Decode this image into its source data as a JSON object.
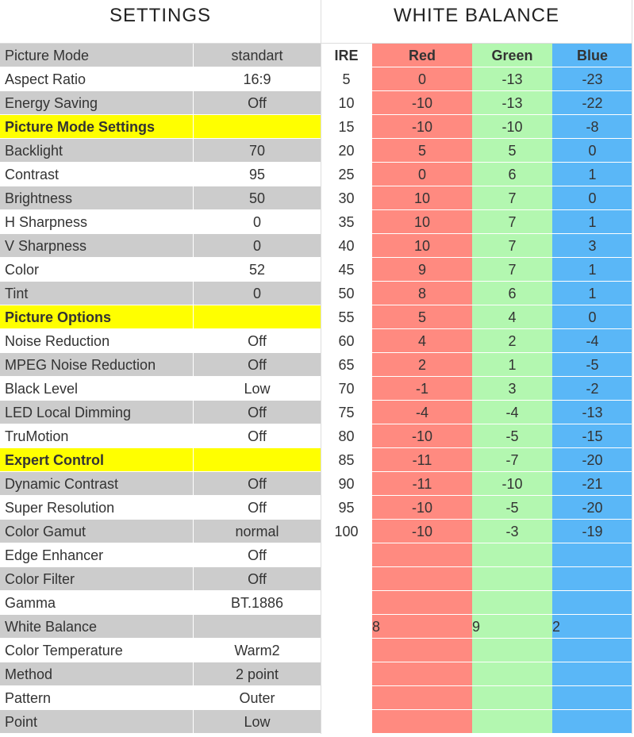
{
  "header": {
    "settings": "SETTINGS",
    "white_balance": "WHITE BALANCE"
  },
  "settings": {
    "rows": [
      [
        "Picture Mode",
        "standart"
      ],
      [
        "Aspect Ratio",
        "16:9"
      ],
      [
        "Energy Saving",
        "Off"
      ],
      [
        "Picture Mode Settings"
      ],
      [
        "Backlight",
        "70"
      ],
      [
        "Contrast",
        "95"
      ],
      [
        "Brightness",
        "50"
      ],
      [
        "H Sharpness",
        "0"
      ],
      [
        "V Sharpness",
        "0"
      ],
      [
        "Color",
        "52"
      ],
      [
        "Tint",
        "0"
      ],
      [
        "Picture Options"
      ],
      [
        "Noise Reduction",
        "Off"
      ],
      [
        "MPEG Noise Reduction",
        "Off"
      ],
      [
        "Black Level",
        "Low"
      ],
      [
        "LED Local Dimming",
        "Off"
      ],
      [
        "TruMotion",
        "Off"
      ],
      [
        "Expert Control"
      ],
      [
        "Dynamic Contrast",
        "Off"
      ],
      [
        "Super Resolution",
        "Off"
      ],
      [
        "Color Gamut",
        "normal"
      ],
      [
        "Edge Enhancer",
        "Off"
      ],
      [
        "Color Filter",
        "Off"
      ],
      [
        "Gamma",
        "BT.1886"
      ],
      [
        "White Balance"
      ],
      [
        "Color Temperature",
        "Warm2"
      ],
      [
        "Method",
        "2 point"
      ],
      [
        "Pattern",
        "Outer"
      ],
      [
        "Point",
        "Low"
      ]
    ]
  },
  "white_balance": {
    "columns": [
      "IRE",
      "Red",
      "Green",
      "Blue"
    ],
    "rows": [
      [
        5,
        0,
        -13,
        -23
      ],
      [
        10,
        -10,
        -13,
        -22
      ],
      [
        15,
        -10,
        -10,
        -8
      ],
      [
        20,
        5,
        5,
        0
      ],
      [
        25,
        0,
        6,
        1
      ],
      [
        30,
        10,
        7,
        0
      ],
      [
        35,
        10,
        7,
        1
      ],
      [
        40,
        10,
        7,
        3
      ],
      [
        45,
        9,
        7,
        1
      ],
      [
        50,
        8,
        6,
        1
      ],
      [
        55,
        5,
        4,
        0
      ],
      [
        60,
        4,
        2,
        -4
      ],
      [
        65,
        2,
        1,
        -5
      ],
      [
        70,
        -1,
        3,
        -2
      ],
      [
        75,
        -4,
        -4,
        -13
      ],
      [
        80,
        -10,
        -5,
        -15
      ],
      [
        85,
        -11,
        -7,
        -20
      ],
      [
        90,
        -11,
        -10,
        -21
      ],
      [
        95,
        -10,
        -5,
        -20
      ],
      [
        100,
        -10,
        -3,
        -19
      ]
    ],
    "summary": [
      8,
      9,
      2
    ]
  }
}
